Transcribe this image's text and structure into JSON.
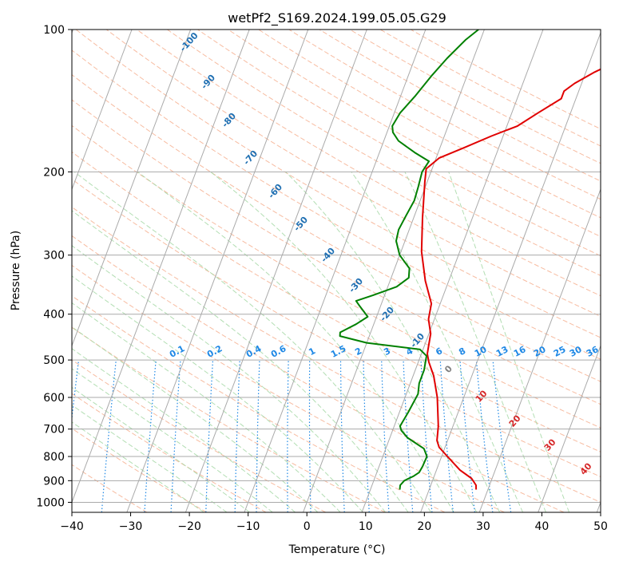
{
  "chart_data": {
    "type": "line",
    "subtype": "skew-t log-p",
    "title": "wetPf2_S169.2024.199.05.05.G29",
    "xlabel": "Temperature (°C)",
    "ylabel": "Pressure (hPa)",
    "xlim": [
      -40,
      50
    ],
    "ylim": [
      1050,
      100
    ],
    "y_scale": "log",
    "grid": true,
    "x_ticks": [
      -40,
      -30,
      -20,
      -10,
      0,
      10,
      20,
      30,
      40,
      50
    ],
    "y_ticks": [
      100,
      200,
      300,
      400,
      500,
      600,
      700,
      800,
      900,
      1000
    ],
    "colors": {
      "temperature": "#e00000",
      "dewpoint": "#008000",
      "isotherm": "#aaaaaa",
      "dry_adiabat": "#f4a582",
      "moist_adiabat": "#a6d8a6",
      "mixing_ratio": "#1e88e5",
      "skewed_isotherm_label": "#1f6fb2",
      "positive_label": "#d62728",
      "zero_label": "#808080"
    },
    "series": [
      {
        "name": "Temperature",
        "points": [
          [
            28.0,
            940
          ],
          [
            27.7,
            920
          ],
          [
            26.5,
            890
          ],
          [
            24.0,
            855
          ],
          [
            21.0,
            800
          ],
          [
            19.0,
            765
          ],
          [
            18.2,
            740
          ],
          [
            17.5,
            690
          ],
          [
            15.5,
            600
          ],
          [
            13.5,
            540
          ],
          [
            11.8,
            505
          ],
          [
            11.0,
            485
          ],
          [
            10.3,
            440
          ],
          [
            9.0,
            410
          ],
          [
            8.5,
            380
          ],
          [
            6.0,
            340
          ],
          [
            3.5,
            295
          ],
          [
            1.5,
            250
          ],
          [
            -0.4,
            210
          ],
          [
            -1.0,
            197
          ],
          [
            0.5,
            187
          ],
          [
            4.0,
            178
          ],
          [
            8.0,
            168
          ],
          [
            11.8,
            160
          ],
          [
            14.5,
            150
          ],
          [
            17.5,
            140
          ],
          [
            17.5,
            135
          ],
          [
            18.8,
            130
          ],
          [
            21.5,
            123
          ],
          [
            24.5,
            117
          ],
          [
            26.5,
            112
          ],
          [
            28.5,
            107
          ],
          [
            30.0,
            103
          ],
          [
            30.8,
            100
          ]
        ]
      },
      {
        "name": "Dewpoint",
        "points": [
          [
            15.0,
            940
          ],
          [
            14.8,
            920
          ],
          [
            15.2,
            900
          ],
          [
            16.5,
            880
          ],
          [
            17.2,
            865
          ],
          [
            17.4,
            840
          ],
          [
            17.5,
            800
          ],
          [
            16.5,
            770
          ],
          [
            13.0,
            730
          ],
          [
            11.5,
            705
          ],
          [
            11.0,
            690
          ],
          [
            11.5,
            645
          ],
          [
            12.0,
            590
          ],
          [
            11.5,
            560
          ],
          [
            11.5,
            525
          ],
          [
            11.0,
            490
          ],
          [
            9.5,
            475
          ],
          [
            0.0,
            460
          ],
          [
            -5.0,
            445
          ],
          [
            -5.2,
            437
          ],
          [
            -3.0,
            420
          ],
          [
            -1.5,
            405
          ],
          [
            -3.5,
            385
          ],
          [
            -4.5,
            375
          ],
          [
            -2.0,
            365
          ],
          [
            1.5,
            350
          ],
          [
            3.0,
            335
          ],
          [
            2.5,
            320
          ],
          [
            0.0,
            300
          ],
          [
            -1.5,
            280
          ],
          [
            -1.8,
            265
          ],
          [
            -1.5,
            250
          ],
          [
            -1.0,
            230
          ],
          [
            -1.2,
            215
          ],
          [
            -1.5,
            200
          ],
          [
            -1.0,
            190
          ],
          [
            -4.0,
            182
          ],
          [
            -7.5,
            172
          ],
          [
            -9.0,
            165
          ],
          [
            -9.5,
            160
          ],
          [
            -9.0,
            150
          ],
          [
            -7.5,
            138
          ],
          [
            -6.0,
            125
          ],
          [
            -4.5,
            115
          ],
          [
            -2.5,
            105
          ],
          [
            -1.0,
            100
          ]
        ]
      }
    ],
    "skewed_isotherm_labels": [
      "-100",
      "-90",
      "-80",
      "-70",
      "-60",
      "-50",
      "-40",
      "-30",
      "-20",
      "-10",
      "0",
      "10",
      "20",
      "30",
      "40"
    ],
    "mixing_ratio_labels": [
      "0.1",
      "0.2",
      "0.4",
      "0.6",
      "1",
      "1.5",
      "2",
      "3",
      "4",
      "6",
      "8",
      "10",
      "13",
      "16",
      "20",
      "25",
      "30",
      "36"
    ]
  }
}
